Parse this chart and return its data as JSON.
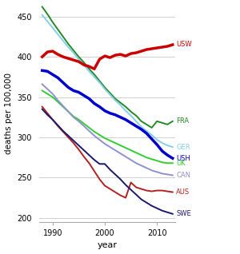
{
  "xlabel": "year",
  "ylabel": "deaths per 100,000",
  "xlim": [
    1987.5,
    2013.5
  ],
  "ylim": [
    195,
    465
  ],
  "yticks": [
    200,
    250,
    300,
    350,
    400,
    450
  ],
  "xticks": [
    1990,
    2000,
    2010
  ],
  "series": {
    "USW": {
      "color": "#cc0000",
      "linewidth": 2.5,
      "years": [
        1988,
        1989,
        1990,
        1991,
        1992,
        1993,
        1994,
        1995,
        1996,
        1997,
        1998,
        1999,
        2000,
        2001,
        2002,
        2003,
        2004,
        2005,
        2006,
        2007,
        2008,
        2009,
        2010,
        2011,
        2012,
        2013
      ],
      "values": [
        400,
        406,
        407,
        403,
        400,
        398,
        396,
        394,
        390,
        388,
        385,
        397,
        401,
        399,
        402,
        403,
        401,
        404,
        405,
        407,
        409,
        410,
        411,
        412,
        413,
        415
      ]
    },
    "FRA": {
      "color": "#228B22",
      "linewidth": 1.4,
      "years": [
        1988,
        1989,
        1990,
        1991,
        1992,
        1993,
        1994,
        1995,
        1996,
        1997,
        1998,
        1999,
        2000,
        2001,
        2002,
        2003,
        2004,
        2005,
        2006,
        2007,
        2008,
        2009,
        2010,
        2011,
        2012,
        2013
      ],
      "values": [
        462,
        453,
        443,
        434,
        425,
        416,
        408,
        400,
        393,
        385,
        378,
        370,
        362,
        355,
        348,
        343,
        338,
        332,
        327,
        320,
        316,
        312,
        320,
        318,
        316,
        320
      ]
    },
    "GER": {
      "color": "#87CEEB",
      "linewidth": 1.4,
      "years": [
        1988,
        1989,
        1990,
        1991,
        1992,
        1993,
        1994,
        1995,
        1996,
        1997,
        1998,
        1999,
        2000,
        2001,
        2002,
        2003,
        2004,
        2005,
        2006,
        2007,
        2008,
        2009,
        2010,
        2011,
        2012,
        2013
      ],
      "values": [
        452,
        444,
        436,
        428,
        420,
        412,
        405,
        397,
        390,
        382,
        375,
        368,
        360,
        353,
        346,
        340,
        333,
        327,
        320,
        313,
        308,
        303,
        297,
        293,
        290,
        288
      ]
    },
    "USH": {
      "color": "#0000CD",
      "linewidth": 2.5,
      "years": [
        1988,
        1989,
        1990,
        1991,
        1992,
        1993,
        1994,
        1995,
        1996,
        1997,
        1998,
        1999,
        2000,
        2001,
        2002,
        2003,
        2004,
        2005,
        2006,
        2007,
        2008,
        2009,
        2010,
        2011,
        2012,
        2013
      ],
      "values": [
        383,
        382,
        378,
        374,
        368,
        362,
        358,
        356,
        352,
        348,
        342,
        338,
        333,
        330,
        328,
        325,
        322,
        318,
        314,
        310,
        305,
        298,
        291,
        283,
        278,
        274
      ]
    },
    "UK": {
      "color": "#32CD32",
      "linewidth": 1.4,
      "years": [
        1988,
        1989,
        1990,
        1991,
        1992,
        1993,
        1994,
        1995,
        1996,
        1997,
        1998,
        1999,
        2000,
        2001,
        2002,
        2003,
        2004,
        2005,
        2006,
        2007,
        2008,
        2009,
        2010,
        2011,
        2012,
        2013
      ],
      "values": [
        358,
        354,
        350,
        344,
        338,
        332,
        326,
        322,
        317,
        312,
        307,
        303,
        299,
        296,
        293,
        290,
        287,
        284,
        281,
        278,
        275,
        273,
        271,
        269,
        268,
        268
      ]
    },
    "CAN": {
      "color": "#9090d0",
      "linewidth": 1.4,
      "years": [
        1988,
        1989,
        1990,
        1991,
        1992,
        1993,
        1994,
        1995,
        1996,
        1997,
        1998,
        1999,
        2000,
        2001,
        2002,
        2003,
        2004,
        2005,
        2006,
        2007,
        2008,
        2009,
        2010,
        2011,
        2012,
        2013
      ],
      "values": [
        366,
        360,
        354,
        346,
        339,
        332,
        325,
        320,
        314,
        308,
        302,
        297,
        292,
        288,
        284,
        280,
        276,
        272,
        268,
        265,
        262,
        259,
        257,
        255,
        254,
        253
      ]
    },
    "AUS": {
      "color": "#b22222",
      "linewidth": 1.4,
      "years": [
        1988,
        1989,
        1990,
        1991,
        1992,
        1993,
        1994,
        1995,
        1996,
        1997,
        1998,
        1999,
        2000,
        2001,
        2002,
        2003,
        2004,
        2005,
        2006,
        2007,
        2008,
        2009,
        2010,
        2011,
        2012,
        2013
      ],
      "values": [
        338,
        330,
        322,
        314,
        307,
        300,
        293,
        285,
        276,
        268,
        258,
        248,
        240,
        236,
        232,
        228,
        225,
        244,
        238,
        236,
        234,
        233,
        234,
        234,
        233,
        232
      ]
    },
    "SWE": {
      "color": "#191970",
      "linewidth": 1.4,
      "years": [
        1988,
        1989,
        1990,
        1991,
        1992,
        1993,
        1994,
        1995,
        1996,
        1997,
        1998,
        1999,
        2000,
        2001,
        2002,
        2003,
        2004,
        2005,
        2006,
        2007,
        2008,
        2009,
        2010,
        2011,
        2012,
        2013
      ],
      "values": [
        335,
        328,
        322,
        315,
        308,
        302,
        296,
        290,
        284,
        278,
        272,
        267,
        267,
        260,
        254,
        248,
        241,
        235,
        229,
        223,
        219,
        215,
        212,
        209,
        207,
        205
      ]
    }
  },
  "label_offsets": {
    "USW": 0,
    "FRA": 0,
    "GER": 0,
    "USH": 0,
    "UK": 0,
    "CAN": 0,
    "AUS": 0,
    "SWE": 0
  },
  "background_color": "#ffffff",
  "grid_color": "#d0d0d0"
}
